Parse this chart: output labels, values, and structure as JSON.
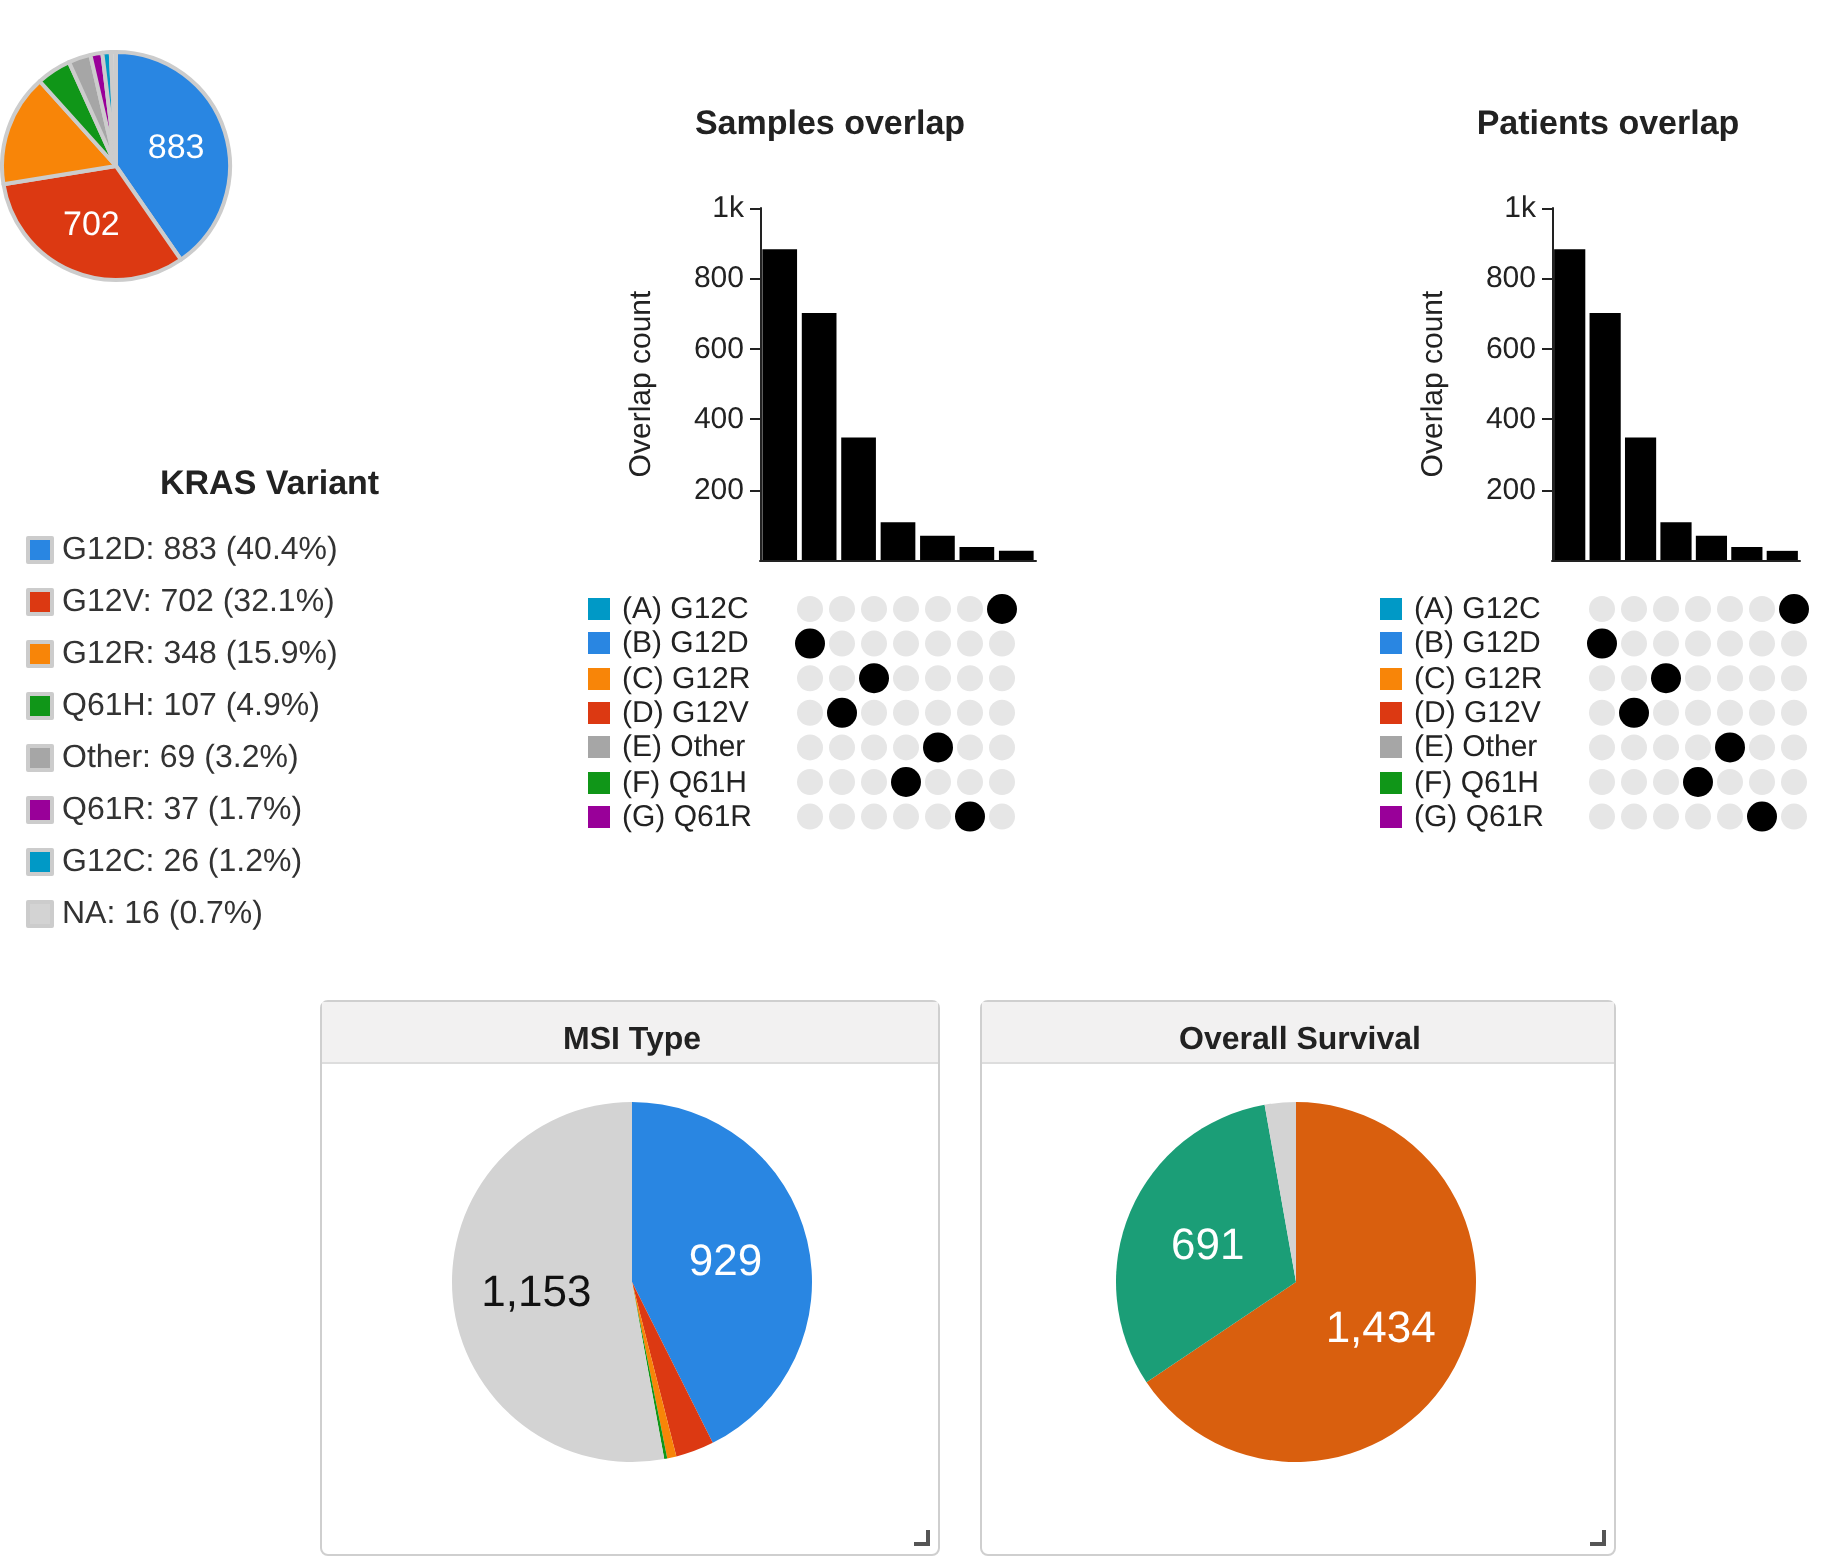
{
  "chart_data": [
    {
      "type": "pie",
      "legend_title": "KRAS Variant",
      "legend": "bottom",
      "categories": [
        "G12D: 883 (40.4%)",
        "G12V: 702 (32.1%)",
        "G12R: 348 (15.9%)",
        "Q61H: 107 (4.9%)",
        "Other: 69 (3.2%)",
        "Q61R: 37 (1.7%)",
        "G12C: 26 (1.2%)",
        "NA: 16 (0.7%)"
      ],
      "values": [
        883,
        702,
        348,
        107,
        69,
        37,
        26,
        16
      ],
      "colors": [
        "#2986e2",
        "#dc3912",
        "#f88508",
        "#109618",
        "#a6a6a6",
        "#990099",
        "#0099c6",
        "#d3d3d3"
      ],
      "value_labels": [
        "883",
        "702",
        null,
        null,
        null,
        null,
        null,
        null
      ]
    },
    {
      "type": "bar",
      "title": "Samples overlap",
      "ylabel": "Overlap count",
      "categories": [
        null,
        null,
        null,
        null,
        null,
        null,
        null
      ],
      "values": [
        883,
        702,
        348,
        107,
        69,
        37,
        26
      ],
      "color": "#000000",
      "ylim": [
        0,
        1000
      ],
      "yticks": [
        200,
        400,
        600,
        800,
        {
          "value": 1000,
          "label": "1k"
        }
      ],
      "tick_labels": "y"
    },
    {
      "type": "other",
      "annotations": [
        "(A) G12C",
        "(B) G12D",
        "(C) G12R",
        "(D) G12V",
        "(E) Other",
        "(F) Q61H",
        "(G) Q61R"
      ],
      "colors": [
        "#0099c6",
        "#2986e2",
        "#f88508",
        "#dc3912",
        "#a6a6a6",
        "#109618",
        "#990099"
      ]
    },
    {
      "type": "bar",
      "title": "Patients overlap",
      "ylabel": "Overlap count",
      "categories": [
        null,
        null,
        null,
        null,
        null,
        null,
        null
      ],
      "values": [
        883,
        702,
        348,
        107,
        69,
        37,
        26
      ],
      "color": "#000000",
      "ylim": [
        0,
        1000
      ],
      "yticks": [
        200,
        400,
        600,
        800,
        {
          "value": 1000,
          "label": "1k"
        }
      ],
      "tick_labels": "y"
    },
    {
      "type": "other",
      "annotations": [
        "(A) G12C",
        "(B) G12D",
        "(C) G12R",
        "(D) G12V",
        "(E) Other",
        "(F) Q61H",
        "(G) Q61R"
      ],
      "colors": [
        "#0099c6",
        "#2986e2",
        "#f88508",
        "#dc3912",
        "#a6a6a6",
        "#109618",
        "#990099"
      ]
    },
    {
      "type": "pie",
      "title": "MSI Type",
      "categories": [
        null,
        null,
        null,
        null,
        null
      ],
      "values": [
        929,
        75,
        18,
        6,
        1153
      ],
      "colors": [
        "#2986e2",
        "#dc3912",
        "#f88508",
        "#109618",
        "#d3d3d3"
      ],
      "value_labels": [
        "929",
        null,
        null,
        null,
        "1,153"
      ]
    },
    {
      "type": "pie",
      "title": "Overall Survival",
      "categories": [
        null,
        null,
        null
      ],
      "values": [
        1434,
        691,
        61
      ],
      "colors": [
        "#d95f0e",
        "#1b9e77",
        "#d3d3d3"
      ],
      "value_labels": [
        "1,434",
        "691",
        null
      ]
    }
  ]
}
